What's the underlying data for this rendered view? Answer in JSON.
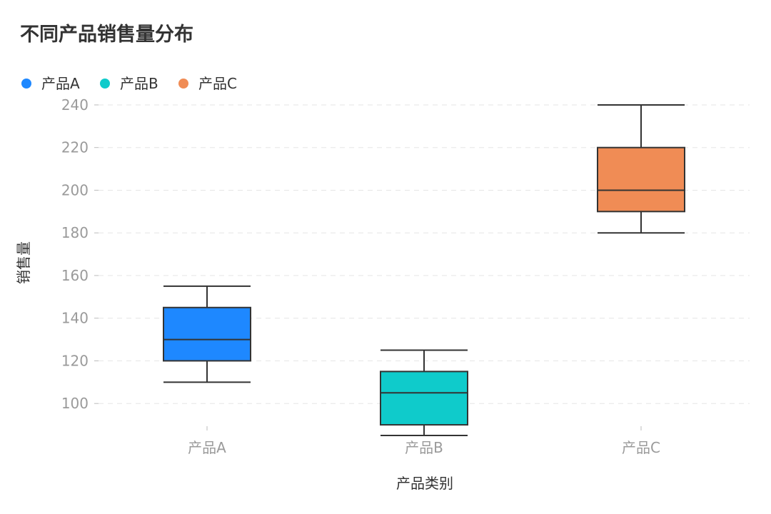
{
  "chart_data": {
    "type": "box",
    "title": "不同产品销售量分布",
    "xlabel": "产品类别",
    "ylabel": "销售量",
    "categories": [
      "产品A",
      "产品B",
      "产品C"
    ],
    "yticks": [
      "100",
      "120",
      "140",
      "160",
      "180",
      "200",
      "220",
      "240"
    ],
    "ylim": [
      84,
      244
    ],
    "grid": true,
    "legend": "top-left",
    "series": [
      {
        "name": "产品A",
        "color": "#1e88ff",
        "min": 110,
        "q1": 120,
        "median": 130,
        "q3": 145,
        "max": 155
      },
      {
        "name": "产品B",
        "color": "#0fcbcb",
        "min": 85,
        "q1": 90,
        "median": 105,
        "q3": 115,
        "max": 125
      },
      {
        "name": "产品C",
        "color": "#f08c55",
        "min": 180,
        "q1": 190,
        "median": 200,
        "q3": 220,
        "max": 240
      }
    ]
  }
}
